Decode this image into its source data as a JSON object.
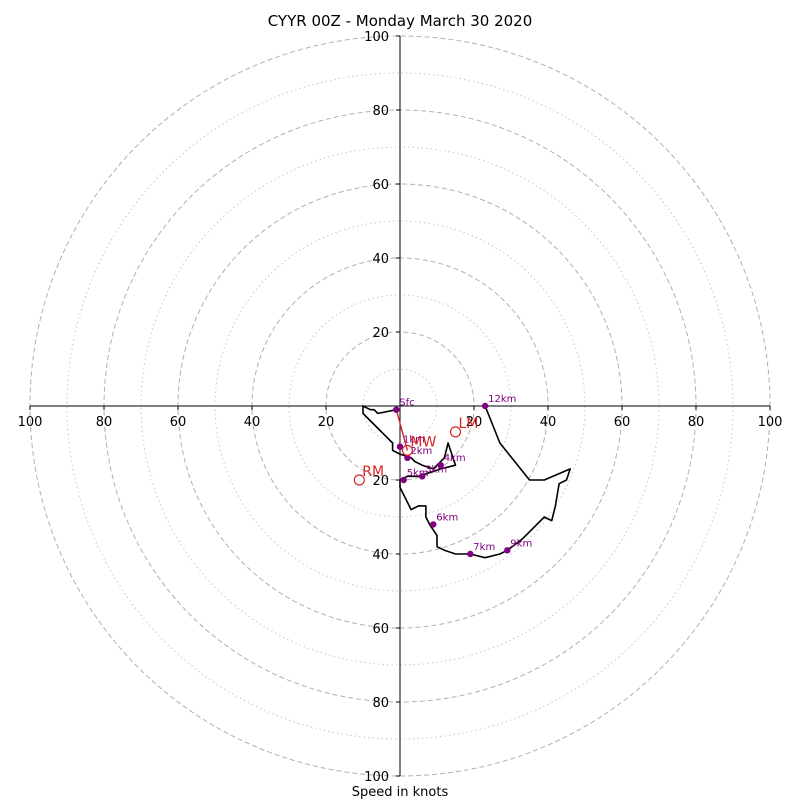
{
  "chart_data": {
    "type": "line",
    "title": "CYYR 00Z - Monday March 30 2020",
    "xlabel": "Speed in knots",
    "ylabel": "",
    "xlim": [
      -100,
      100
    ],
    "ylim": [
      -100,
      100
    ],
    "rings": [
      10,
      20,
      30,
      40,
      50,
      60,
      70,
      80,
      90,
      100
    ],
    "tick_values": [
      20,
      40,
      60,
      80,
      100
    ],
    "x_tick_labels": [
      "100",
      "80",
      "60",
      "40",
      "20",
      "20",
      "40",
      "60",
      "80",
      "100"
    ],
    "y_tick_labels": [
      "100",
      "80",
      "60",
      "40",
      "20",
      "20",
      "40",
      "60",
      "80",
      "100"
    ],
    "hodograph": {
      "color": "#000000",
      "x": [
        -1,
        -6,
        -7,
        -8,
        -10,
        -10,
        -7,
        -5,
        -2,
        -2,
        -2,
        0,
        3,
        4,
        6,
        9,
        10,
        12,
        13,
        15,
        11,
        8,
        5,
        2,
        0,
        0,
        3,
        5,
        7,
        7,
        8,
        10,
        10,
        12,
        15,
        16,
        17,
        19,
        23,
        27,
        29,
        33,
        36,
        39,
        41,
        42,
        43,
        45,
        46,
        39,
        35,
        31,
        27,
        23
      ],
      "y": [
        -1,
        -2,
        -1,
        -1,
        0,
        -2,
        -5,
        -7,
        -10,
        -11,
        -12,
        -13,
        -14,
        -15,
        -16,
        -17,
        -16,
        -14,
        -10,
        -16,
        -17,
        -18,
        -19,
        -19,
        -20,
        -22,
        -28,
        -27,
        -27,
        -30,
        -32,
        -35,
        -38,
        -39,
        -40,
        -40,
        -40,
        -40,
        -41,
        -40,
        -39,
        -36,
        -33,
        -30,
        -31,
        -27,
        -21,
        -20,
        -17,
        -20,
        -20,
        -15,
        -10,
        0
      ]
    },
    "height_markers": {
      "color": "#800080",
      "points": [
        {
          "label": "Sfc",
          "x": -1,
          "y": -1
        },
        {
          "label": "1km",
          "x": 0,
          "y": -11
        },
        {
          "label": "2km",
          "x": 2,
          "y": -14
        },
        {
          "label": "3km",
          "x": 6,
          "y": -19
        },
        {
          "label": "4km",
          "x": 11,
          "y": -16
        },
        {
          "label": "5km",
          "x": 1,
          "y": -20
        },
        {
          "label": "6km",
          "x": 9,
          "y": -32
        },
        {
          "label": "7km",
          "x": 19,
          "y": -40
        },
        {
          "label": "9km",
          "x": 29,
          "y": -39
        },
        {
          "label": "12km",
          "x": 23,
          "y": 0
        }
      ]
    },
    "storm_motion": {
      "color": "#d62728",
      "points": [
        {
          "label": "LM",
          "x": 15,
          "y": -7
        },
        {
          "label": "MW",
          "x": 2,
          "y": -12
        },
        {
          "label": "RM",
          "x": -11,
          "y": -20
        }
      ],
      "shear_vector": {
        "x": [
          -1,
          2
        ],
        "y": [
          -1,
          -12
        ]
      }
    }
  }
}
